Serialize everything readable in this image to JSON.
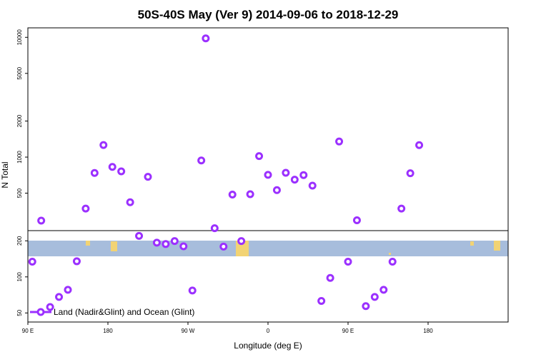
{
  "chart_data": {
    "type": "scatter",
    "title": "50S-40S May (Ver 9)   2014-09-06 to 2018-12-29",
    "xlabel": "Longitude (deg E)",
    "ylabel": "N Total",
    "y_scale": "log",
    "xlim": [
      -90,
      180
    ],
    "ylim": [
      42,
      12000
    ],
    "grid": false,
    "legend_position": "bottom-left",
    "x_ticks": [
      {
        "value": -90,
        "label": "90 E"
      },
      {
        "value": -45,
        "label": "180"
      },
      {
        "value": 0,
        "label": "90 W"
      },
      {
        "value": 45,
        "label": "0"
      },
      {
        "value": 90,
        "label": "90 E"
      },
      {
        "value": 135,
        "label": "180"
      }
    ],
    "y_ticks": [
      {
        "value": 50,
        "label": "50"
      },
      {
        "value": 100,
        "label": "100"
      },
      {
        "value": 200,
        "label": "200"
      },
      {
        "value": 500,
        "label": "500"
      },
      {
        "value": 1000,
        "label": "1000"
      },
      {
        "value": 2000,
        "label": "2000"
      },
      {
        "value": 5000,
        "label": "5000"
      },
      {
        "value": 10000,
        "label": "10000"
      }
    ],
    "series": [
      {
        "name": "Land (Nadir&Glint) and Ocean (Glint)",
        "color": "#9b30ff",
        "points": [
          {
            "x": -87.5,
            "y": 134
          },
          {
            "x": -82.5,
            "y": 295
          },
          {
            "x": -77.5,
            "y": 56
          },
          {
            "x": -72.5,
            "y": 68
          },
          {
            "x": -67.5,
            "y": 78
          },
          {
            "x": -62.5,
            "y": 135
          },
          {
            "x": -57.5,
            "y": 372
          },
          {
            "x": -52.5,
            "y": 737
          },
          {
            "x": -47.5,
            "y": 1262
          },
          {
            "x": -42.5,
            "y": 828
          },
          {
            "x": -37.5,
            "y": 760
          },
          {
            "x": -32.5,
            "y": 420
          },
          {
            "x": -27.5,
            "y": 220
          },
          {
            "x": -22.5,
            "y": 685
          },
          {
            "x": -17.5,
            "y": 193
          },
          {
            "x": -12.5,
            "y": 188
          },
          {
            "x": -7.5,
            "y": 199
          },
          {
            "x": -2.5,
            "y": 180
          },
          {
            "x": 2.5,
            "y": 77
          },
          {
            "x": 7.5,
            "y": 937
          },
          {
            "x": 10,
            "y": 9800
          },
          {
            "x": 15,
            "y": 255
          },
          {
            "x": 20,
            "y": 179
          },
          {
            "x": 25,
            "y": 487
          },
          {
            "x": 30,
            "y": 199
          },
          {
            "x": 35,
            "y": 490
          },
          {
            "x": 40,
            "y": 1020
          },
          {
            "x": 45,
            "y": 711
          },
          {
            "x": 50,
            "y": 530
          },
          {
            "x": 55,
            "y": 740
          },
          {
            "x": 60,
            "y": 648
          },
          {
            "x": 65,
            "y": 708
          },
          {
            "x": 70,
            "y": 578
          },
          {
            "x": 75,
            "y": 63
          },
          {
            "x": 80,
            "y": 98
          },
          {
            "x": 85,
            "y": 1350
          },
          {
            "x": 90,
            "y": 134
          },
          {
            "x": 95,
            "y": 297
          },
          {
            "x": 100,
            "y": 57
          },
          {
            "x": 105,
            "y": 68
          },
          {
            "x": 110,
            "y": 78
          },
          {
            "x": 115,
            "y": 134
          },
          {
            "x": 120,
            "y": 372
          },
          {
            "x": 125,
            "y": 733
          },
          {
            "x": 130,
            "y": 1260
          }
        ]
      }
    ]
  }
}
